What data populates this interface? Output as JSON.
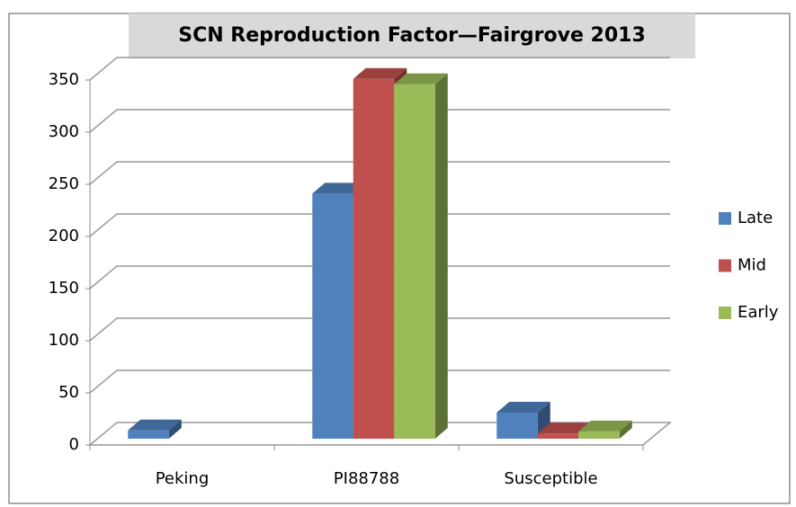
{
  "chart_data": {
    "type": "bar3d",
    "title": "SCN Reproduction Factor—Fairgrove 2013",
    "categories": [
      "Peking",
      "PI88788",
      "Susceptible"
    ],
    "series": [
      {
        "name": "Late",
        "color": "#4f81bd",
        "values": [
          8,
          235,
          25
        ]
      },
      {
        "name": "Mid",
        "color": "#c0504d",
        "values": [
          null,
          345,
          5
        ]
      },
      {
        "name": "Early",
        "color": "#9bbb59",
        "values": [
          null,
          340,
          7
        ]
      }
    ],
    "ylim": [
      0,
      350
    ],
    "yticks": [
      0,
      50,
      100,
      150,
      200,
      250,
      300,
      350
    ],
    "grid": true,
    "legend": "right"
  }
}
